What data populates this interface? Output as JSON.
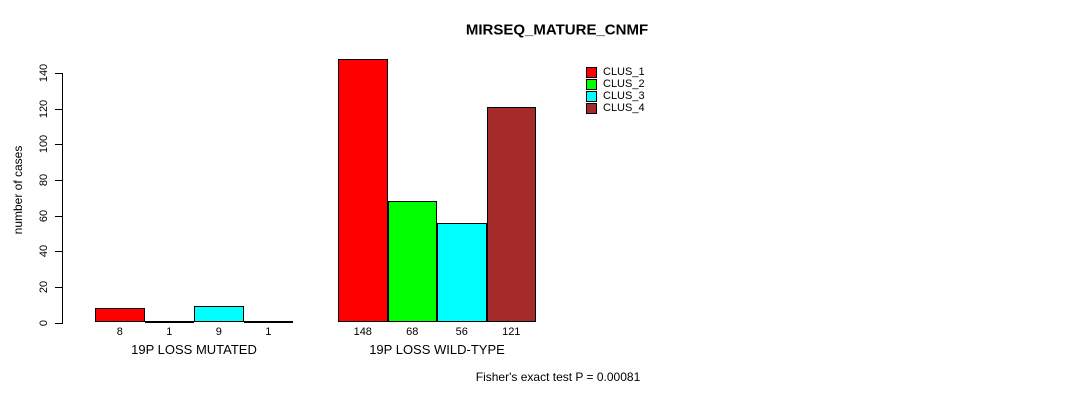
{
  "title": "MIRSEQ_MATURE_CNMF",
  "ylabel": "number of cases",
  "footer": "Fisher's exact test P = 0.00081",
  "chart_data": {
    "type": "bar",
    "categories": [
      "19P LOSS MUTATED",
      "19P LOSS WILD-TYPE"
    ],
    "series": [
      {
        "name": "CLUS_1",
        "color": "#ff0000",
        "values": [
          8,
          148
        ]
      },
      {
        "name": "CLUS_2",
        "color": "#00ff00",
        "values": [
          1,
          68
        ]
      },
      {
        "name": "CLUS_3",
        "color": "#00ffff",
        "values": [
          9,
          56
        ]
      },
      {
        "name": "CLUS_4",
        "color": "#a52a2a",
        "values": [
          1,
          121
        ]
      }
    ],
    "yticks": [
      0,
      20,
      40,
      60,
      80,
      100,
      120,
      140
    ],
    "ylim": [
      0,
      140
    ],
    "bar_value_labels": [
      [
        "8",
        "1",
        "9",
        "1"
      ],
      [
        "148",
        "68",
        "56",
        "121"
      ]
    ],
    "grid": false,
    "legend_position": "top-right-inside",
    "axis_color": "#000000",
    "background_color": "#ffffff"
  }
}
